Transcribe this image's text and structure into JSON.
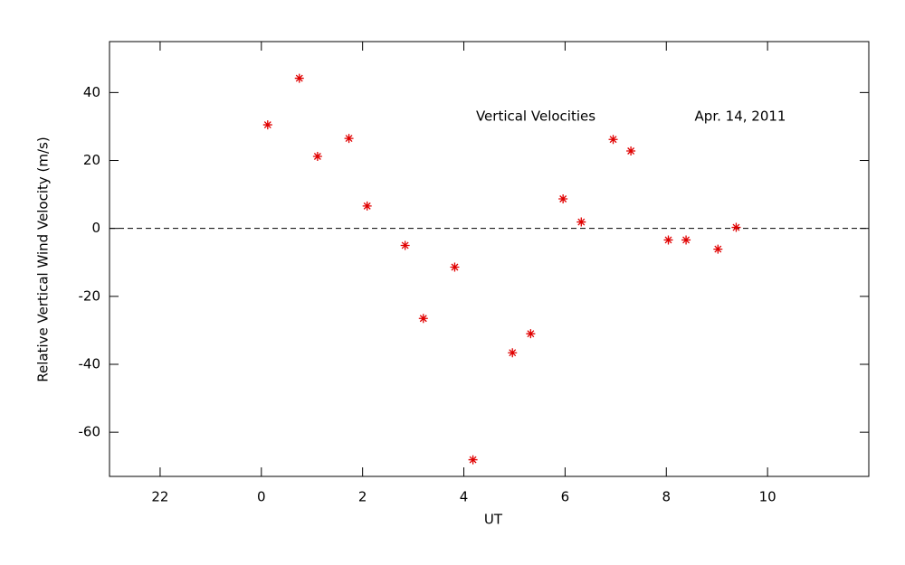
{
  "chart_data": {
    "type": "scatter",
    "xlabel": "UT",
    "ylabel": "Relative Vertical Wind Velocity (m/s)",
    "annotations": [
      "Vertical Velocities",
      "Apr. 14, 2011"
    ],
    "x": [
      0.125,
      0.75,
      1.11,
      1.73,
      2.09,
      2.84,
      3.2,
      3.82,
      4.18,
      4.96,
      5.32,
      5.96,
      6.32,
      6.95,
      7.3,
      8.04,
      8.39,
      9.02,
      9.38
    ],
    "values": [
      30.5,
      44.2,
      21.2,
      26.5,
      6.6,
      -5.0,
      -26.5,
      -11.4,
      -68.1,
      -36.6,
      -31.0,
      8.7,
      1.9,
      26.2,
      22.8,
      -3.4,
      -3.4,
      -6.1,
      0.3
    ],
    "color": "#e00000",
    "marker": "asterisk",
    "xlim": [
      -3,
      12
    ],
    "xticks": [
      {
        "value": -2,
        "label": "22"
      },
      0,
      2,
      4,
      6,
      8,
      10
    ],
    "ylim": [
      -73,
      55
    ],
    "yticks": [
      -60,
      -40,
      -20,
      0,
      20,
      40
    ],
    "reference_line": 0,
    "grid": false
  }
}
